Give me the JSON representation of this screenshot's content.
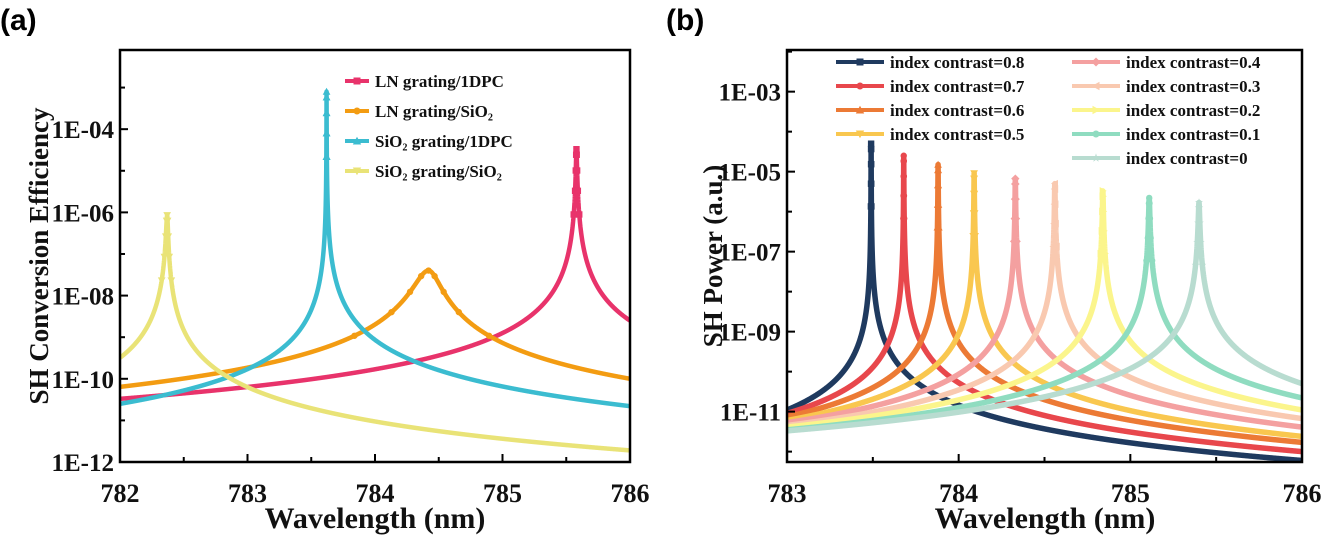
{
  "chart_data": [
    {
      "panel_label": "(a)",
      "type": "line",
      "xlabel": "Wavelength (nm)",
      "ylabel": "SH Conversion Efficiency",
      "xlim": [
        782,
        786
      ],
      "ylim": [
        1e-12,
        0.008
      ],
      "yscale": "log",
      "xticks": [
        "782",
        "783",
        "784",
        "785",
        "786"
      ],
      "yticks": [
        "1E-12",
        "1E-10",
        "1E-08",
        "1E-06",
        "1E-04"
      ],
      "legend_position": "top-right",
      "series": [
        {
          "name": "LN grating/1DPC",
          "color": "#e8336b",
          "marker": "square",
          "points": [
            [
              782,
              3.3e-11
            ],
            [
              785.58,
              3.3e-05
            ],
            [
              786,
              2.5e-09
            ]
          ]
        },
        {
          "name": "LN grating/SiO₂",
          "color": "#f39c12",
          "marker": "circle",
          "points": [
            [
              782,
              6.4e-11
            ],
            [
              784.42,
              4e-08
            ],
            [
              786,
              1e-10
            ]
          ]
        },
        {
          "name": "SiO₂ grating/1DPC",
          "color": "#3bbcd0",
          "marker": "triangle-up",
          "points": [
            [
              782,
              2.5e-11
            ],
            [
              783.62,
              0.0008
            ],
            [
              786,
              2.2e-11
            ]
          ]
        },
        {
          "name": "SiO₂ grating/SiO₂",
          "color": "#e9e377",
          "marker": "triangle-down",
          "points": [
            [
              782,
              3.2e-10
            ],
            [
              782.37,
              8.5e-07
            ],
            [
              786,
              1.9e-12
            ]
          ]
        }
      ]
    },
    {
      "panel_label": "(b)",
      "type": "line",
      "xlabel": "Wavelength (nm)",
      "ylabel": "SH Power (a.u.)",
      "xlim": [
        783,
        786
      ],
      "ylim": [
        5.5e-13,
        0.011
      ],
      "yscale": "log",
      "xticks": [
        "783",
        "784",
        "785",
        "786"
      ],
      "yticks": [
        "1E-11",
        "1E-09",
        "1E-07",
        "1E-05",
        "1E-03"
      ],
      "legend_position": "top",
      "series": [
        {
          "name": "index contrast=0.8",
          "color": "#1f3a5f",
          "marker": "square",
          "points": [
            [
              783,
              1.1e-11
            ],
            [
              783.49,
              5e-05
            ],
            [
              786,
              6e-13
            ]
          ]
        },
        {
          "name": "index contrast=0.7",
          "color": "#e8474c",
          "marker": "circle",
          "points": [
            [
              783,
              9e-12
            ],
            [
              783.68,
              2.5e-05
            ],
            [
              786,
              1e-12
            ]
          ]
        },
        {
          "name": "index contrast=0.6",
          "color": "#ec7a35",
          "marker": "triangle-up",
          "points": [
            [
              783,
              7.4e-12
            ],
            [
              783.88,
              1.5e-05
            ],
            [
              786,
              1.7e-12
            ]
          ]
        },
        {
          "name": "index contrast=0.5",
          "color": "#f9c74f",
          "marker": "triangle-down",
          "points": [
            [
              783,
              6e-12
            ],
            [
              784.09,
              9e-06
            ],
            [
              786,
              2.4e-12
            ]
          ]
        },
        {
          "name": "index contrast=0.4",
          "color": "#f4a0a0",
          "marker": "diamond",
          "points": [
            [
              783,
              5.3e-12
            ],
            [
              784.33,
              6.7e-06
            ],
            [
              786,
              4.1e-12
            ]
          ]
        },
        {
          "name": "index contrast=0.3",
          "color": "#f9c9b0",
          "marker": "triangle-left",
          "points": [
            [
              783,
              4.5e-12
            ],
            [
              784.56,
              5e-06
            ],
            [
              786,
              6.7e-12
            ]
          ]
        },
        {
          "name": "index contrast=0.2",
          "color": "#fbf58c",
          "marker": "triangle-right",
          "points": [
            [
              783,
              4.1e-12
            ],
            [
              784.84,
              3.3e-06
            ],
            [
              786,
              1.1e-11
            ]
          ]
        },
        {
          "name": "index contrast=0.1",
          "color": "#8fdcc0",
          "marker": "circle",
          "points": [
            [
              783,
              3.5e-12
            ],
            [
              785.11,
              2.2e-06
            ],
            [
              786,
              2.2e-11
            ]
          ]
        },
        {
          "name": "index contrast=0",
          "color": "#b8dcd0",
          "marker": "star",
          "points": [
            [
              783,
              3.3e-12
            ],
            [
              785.4,
              1.7e-06
            ],
            [
              786,
              5e-11
            ]
          ]
        }
      ]
    }
  ]
}
